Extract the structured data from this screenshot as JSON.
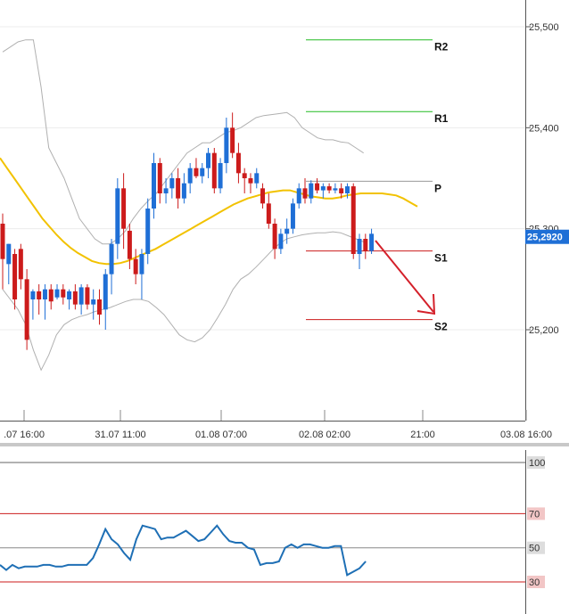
{
  "chart_data": [
    {
      "type": "candlestick",
      "ylim": [
        25.1,
        25.54
      ],
      "price_ticks": [
        "25,500",
        "25,400",
        "25,300",
        "25,200"
      ],
      "price_tick_values": [
        25.5,
        25.4,
        25.3,
        25.2
      ],
      "time_ticks": [
        ".07 16:00",
        "31.07 11:00",
        "01.08 07:00",
        "02.08 02:00",
        "21:00",
        "03.08 16:00"
      ],
      "current_price_label": "25,2920",
      "current_price": 25.292,
      "colors": {
        "up": "#1f6fd6",
        "down": "#cc1b1b",
        "ma": "#f2c200",
        "band": "#b0b0b0",
        "resistance": "#22bb22",
        "support": "#cc1b1b",
        "pivot": "#999999",
        "arrow": "#d4202a"
      },
      "levels": [
        {
          "label": "R2",
          "value": 25.487
        },
        {
          "label": "R1",
          "value": 25.416
        },
        {
          "label": "P",
          "value": 25.347
        },
        {
          "label": "S1",
          "value": 25.278
        },
        {
          "label": "S2",
          "value": 25.21
        }
      ],
      "candles": [
        [
          25.305,
          25.315,
          25.24,
          25.27
        ],
        [
          25.265,
          25.285,
          25.245,
          25.285
        ],
        [
          25.275,
          25.28,
          25.22,
          25.23
        ],
        [
          25.28,
          25.285,
          25.24,
          25.25
        ],
        [
          25.25,
          25.26,
          25.18,
          25.19
        ],
        [
          25.23,
          25.24,
          25.21,
          25.238
        ],
        [
          25.238,
          25.245,
          25.215,
          25.23
        ],
        [
          25.23,
          25.245,
          25.21,
          25.24
        ],
        [
          25.24,
          25.245,
          25.22,
          25.228
        ],
        [
          25.232,
          25.245,
          25.23,
          25.24
        ],
        [
          25.24,
          25.245,
          25.225,
          25.232
        ],
        [
          25.23,
          25.24,
          25.22,
          25.238
        ],
        [
          25.238,
          25.245,
          25.22,
          25.225
        ],
        [
          25.225,
          25.245,
          25.215,
          25.242
        ],
        [
          25.242,
          25.245,
          25.22,
          25.225
        ],
        [
          25.225,
          25.24,
          25.21,
          25.23
        ],
        [
          25.23,
          25.24,
          25.205,
          25.215
        ],
        [
          25.22,
          25.26,
          25.2,
          25.255
        ],
        [
          25.255,
          25.29,
          25.235,
          25.285
        ],
        [
          25.285,
          25.35,
          25.27,
          25.34
        ],
        [
          25.34,
          25.355,
          25.28,
          25.3
        ],
        [
          25.298,
          25.305,
          25.26,
          25.27
        ],
        [
          25.27,
          25.28,
          25.245,
          25.255
        ],
        [
          25.255,
          25.28,
          25.23,
          25.275
        ],
        [
          25.275,
          25.33,
          25.265,
          25.32
        ],
        [
          25.32,
          25.375,
          25.31,
          25.365
        ],
        [
          25.365,
          25.37,
          25.325,
          25.335
        ],
        [
          25.335,
          25.35,
          25.325,
          25.34
        ],
        [
          25.34,
          25.355,
          25.33,
          25.35
        ],
        [
          25.35,
          25.36,
          25.32,
          25.33
        ],
        [
          25.33,
          25.355,
          25.325,
          25.345
        ],
        [
          25.345,
          25.365,
          25.335,
          25.36
        ],
        [
          25.36,
          25.37,
          25.35,
          25.352
        ],
        [
          25.352,
          25.365,
          25.345,
          25.36
        ],
        [
          25.36,
          25.38,
          25.35,
          25.375
        ],
        [
          25.375,
          25.38,
          25.335,
          25.34
        ],
        [
          25.34,
          25.37,
          25.335,
          25.365
        ],
        [
          25.365,
          25.41,
          25.355,
          25.4
        ],
        [
          25.4,
          25.415,
          25.37,
          25.375
        ],
        [
          25.375,
          25.385,
          25.345,
          25.355
        ],
        [
          25.355,
          25.36,
          25.335,
          25.35
        ],
        [
          25.35,
          25.355,
          25.335,
          25.345
        ],
        [
          25.345,
          25.36,
          25.34,
          25.355
        ],
        [
          25.34,
          25.345,
          25.32,
          25.325
        ],
        [
          25.325,
          25.335,
          25.3,
          25.305
        ],
        [
          25.305,
          25.31,
          25.27,
          25.28
        ],
        [
          25.28,
          25.3,
          25.275,
          25.295
        ],
        [
          25.295,
          25.31,
          25.285,
          25.3
        ],
        [
          25.3,
          25.33,
          25.295,
          25.325
        ],
        [
          25.325,
          25.345,
          25.32,
          25.34
        ],
        [
          25.34,
          25.35,
          25.325,
          25.33
        ],
        [
          25.33,
          25.348,
          25.325,
          25.345
        ],
        [
          25.345,
          25.35,
          25.335,
          25.338
        ],
        [
          25.338,
          25.345,
          25.33,
          25.342
        ],
        [
          25.342,
          25.345,
          25.335,
          25.338
        ],
        [
          25.338,
          25.345,
          25.335,
          25.34
        ],
        [
          25.34,
          25.345,
          25.33,
          25.335
        ],
        [
          25.335,
          25.345,
          25.33,
          25.342
        ],
        [
          25.342,
          25.345,
          25.27,
          25.275
        ],
        [
          25.275,
          25.295,
          25.26,
          25.29
        ],
        [
          25.29,
          25.295,
          25.27,
          25.278
        ],
        [
          25.278,
          25.3,
          25.275,
          25.295
        ]
      ],
      "moving_average": [
        25.37,
        25.36,
        25.35,
        25.34,
        25.33,
        25.32,
        25.31,
        25.302,
        25.294,
        25.287,
        25.281,
        25.276,
        25.272,
        25.268,
        25.266,
        25.265,
        25.265,
        25.266,
        25.268,
        25.271,
        25.274,
        25.277,
        25.28,
        25.284,
        25.288,
        25.292,
        25.296,
        25.3,
        25.304,
        25.308,
        25.312,
        25.316,
        25.32,
        25.324,
        25.327,
        25.33,
        25.332,
        25.334,
        25.336,
        25.337,
        25.338,
        25.338,
        25.336,
        25.334,
        25.332,
        25.331,
        25.33,
        25.33,
        25.331,
        25.333,
        25.334,
        25.335,
        25.335,
        25.335,
        25.335,
        25.334,
        25.333,
        25.33,
        25.326,
        25.322
      ],
      "bollinger_upper": [
        25.475,
        25.48,
        25.485,
        25.487,
        25.487,
        25.44,
        25.38,
        25.365,
        25.35,
        25.33,
        25.31,
        25.3,
        25.29,
        25.285,
        25.285,
        25.29,
        25.298,
        25.31,
        25.32,
        25.328,
        25.335,
        25.345,
        25.355,
        25.365,
        25.375,
        25.38,
        25.385,
        25.385,
        25.39,
        25.395,
        25.397,
        25.4,
        25.405,
        25.41,
        25.412,
        25.413,
        25.414,
        25.415,
        25.41,
        25.4,
        25.395,
        25.39,
        25.388,
        25.388,
        25.386,
        25.385,
        25.38,
        25.375
      ],
      "bollinger_lower": [
        25.24,
        25.23,
        25.22,
        25.205,
        25.18,
        25.16,
        25.175,
        25.195,
        25.205,
        25.21,
        25.213,
        25.215,
        25.218,
        25.22,
        25.222,
        25.225,
        25.228,
        25.23,
        25.23,
        25.228,
        25.222,
        25.215,
        25.205,
        25.195,
        25.19,
        25.188,
        25.192,
        25.2,
        25.212,
        25.225,
        25.24,
        25.25,
        25.255,
        25.262,
        25.27,
        25.278,
        25.285,
        25.29,
        25.292,
        25.294,
        25.295,
        25.296,
        25.296,
        25.297,
        25.296,
        25.293,
        25.29,
        25.287
      ]
    },
    {
      "type": "line",
      "ylim": [
        0,
        100
      ],
      "ticks": [
        "100",
        "70",
        "50",
        "30"
      ],
      "tick_values": [
        100,
        70,
        50,
        30
      ],
      "levels": [
        70,
        50,
        30
      ],
      "colors": {
        "line": "#1e6fb5",
        "level": "#cc1b1b",
        "mid": "#888888"
      },
      "values": [
        40,
        37,
        40,
        38,
        39,
        39,
        39,
        40,
        40,
        39,
        39,
        40,
        40,
        40,
        40,
        44,
        52,
        61,
        55,
        52,
        47,
        43,
        55,
        63,
        62,
        61,
        55,
        56,
        56,
        58,
        60,
        57,
        54,
        55,
        59,
        63,
        58,
        54,
        53,
        53,
        50,
        49,
        40,
        41,
        41,
        42,
        50,
        52,
        50,
        52,
        52,
        51,
        50,
        50,
        51,
        51,
        34,
        36,
        38,
        42
      ]
    }
  ]
}
